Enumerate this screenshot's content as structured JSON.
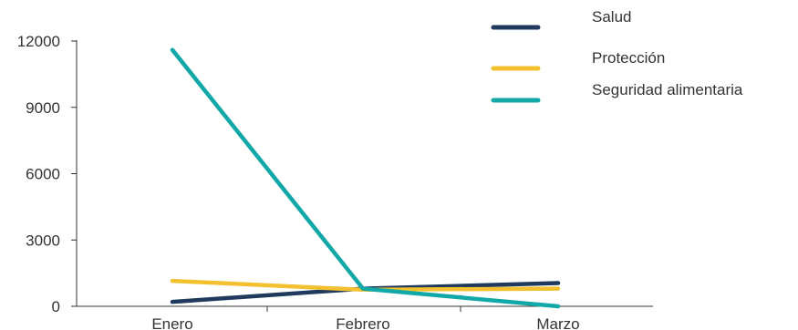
{
  "chart_data": {
    "type": "line",
    "categories": [
      "Enero",
      "Febrero",
      "Marzo"
    ],
    "series": [
      {
        "name": "Salud",
        "values": [
          200,
          800,
          1050
        ],
        "color": "#1f3a5c"
      },
      {
        "name": "Protección",
        "values": [
          1150,
          750,
          800
        ],
        "color": "#f3c12f"
      },
      {
        "name": "Seguridad alimentaria",
        "values": [
          11600,
          800,
          0
        ],
        "color": "#13a8a8"
      }
    ],
    "title": "",
    "xlabel": "",
    "ylabel": "",
    "ylim": [
      0,
      12000
    ],
    "yticks": [
      {
        "value": 0,
        "label": "0"
      },
      {
        "value": 3000,
        "label": "3000"
      },
      {
        "value": 6000,
        "label": "6000"
      },
      {
        "value": 9000,
        "label": "9000"
      },
      {
        "value": 12000,
        "label": "12000"
      }
    ],
    "grid": false,
    "legend": "top-right"
  }
}
